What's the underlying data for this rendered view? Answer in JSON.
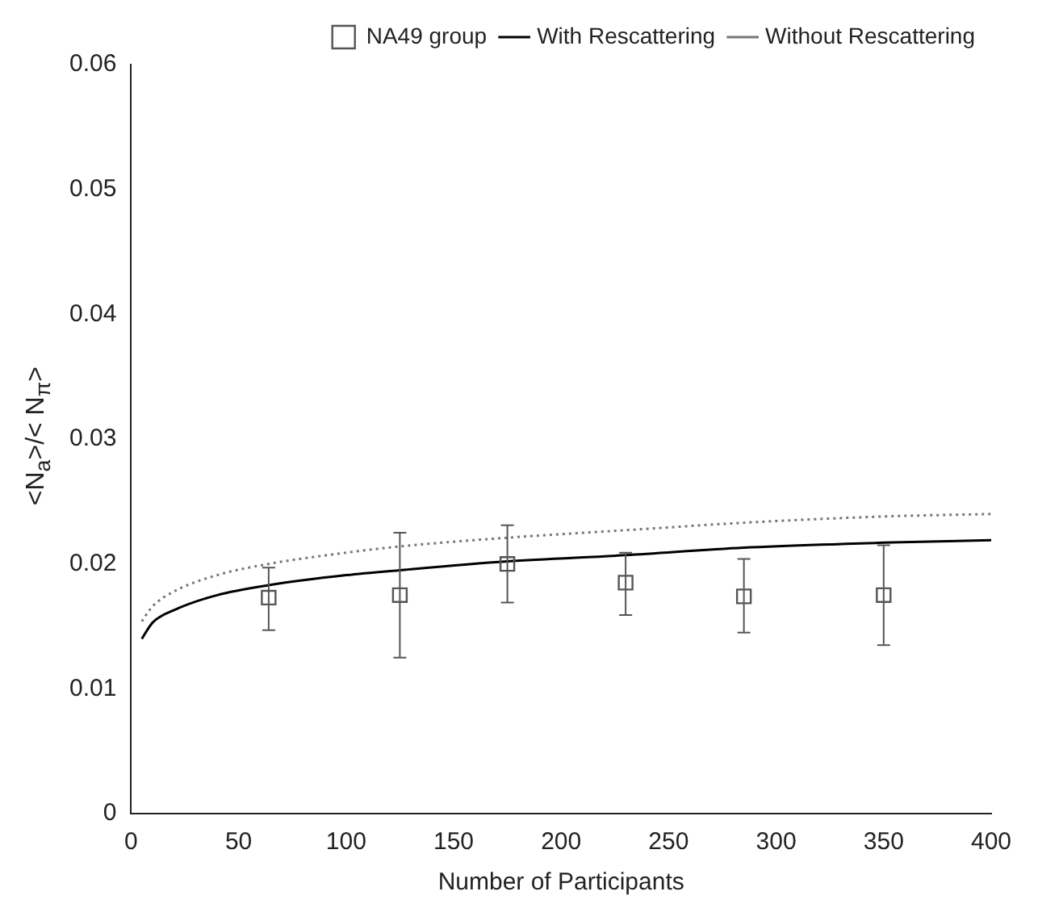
{
  "chart_data": {
    "type": "scatter",
    "xlabel": "Number of Participants",
    "ylabel": "<N$_{a}$>/< N$_{π}$>",
    "xlim": [
      0,
      400
    ],
    "xticks": [
      0,
      50,
      100,
      150,
      200,
      250,
      300,
      350,
      400
    ],
    "ylim": [
      0,
      0.06
    ],
    "yticks": [
      0,
      0.01,
      0.02,
      0.03,
      0.04,
      0.05,
      0.06
    ],
    "grid": false,
    "legend": "top right",
    "series": [
      {
        "name": "NA49 group",
        "marker": "square",
        "color": "#555555",
        "x": [
          64,
          125,
          175,
          230,
          285,
          350
        ],
        "values": [
          0.0173,
          0.0175,
          0.02,
          0.0185,
          0.0174,
          0.0175
        ],
        "errors": [
          [
            0.0147,
            0.0197
          ],
          [
            0.0125,
            0.0225
          ],
          [
            0.0169,
            0.0231
          ],
          [
            0.0159,
            0.0209
          ],
          [
            0.0145,
            0.0204
          ],
          [
            0.0135,
            0.0215
          ]
        ]
      },
      {
        "name": "With Rescattering",
        "type": "line",
        "line_style": "solid",
        "color": "#000000",
        "x": [
          5,
          10,
          20,
          40,
          64,
          100,
          125,
          175,
          230,
          285,
          350,
          400
        ],
        "values": [
          0.014,
          0.0153,
          0.0163,
          0.0175,
          0.0183,
          0.0191,
          0.0195,
          0.0202,
          0.0207,
          0.0213,
          0.0217,
          0.0219
        ]
      },
      {
        "name": "Without Rescattering",
        "type": "line",
        "line_style": "dotted",
        "color": "#777777",
        "x": [
          5,
          10,
          20,
          40,
          64,
          100,
          125,
          175,
          230,
          285,
          350,
          400
        ],
        "values": [
          0.0154,
          0.0166,
          0.0178,
          0.0191,
          0.02,
          0.0209,
          0.0214,
          0.0221,
          0.0227,
          0.0233,
          0.0238,
          0.024
        ]
      }
    ]
  }
}
